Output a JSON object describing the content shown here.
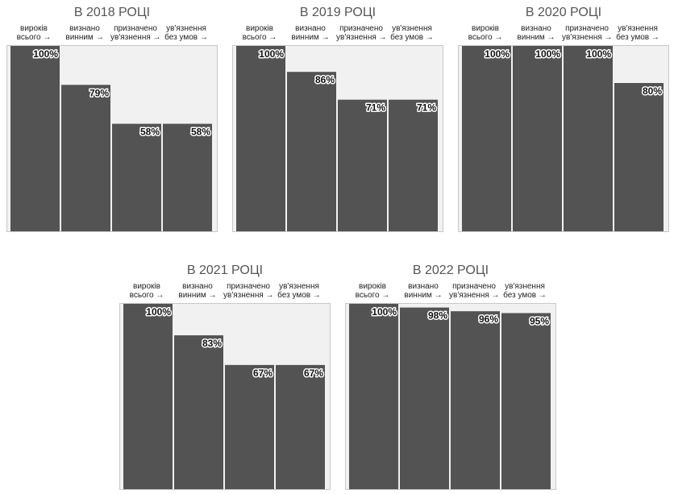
{
  "chart_data": [
    {
      "type": "bar",
      "title": "В 2018 РОЦІ",
      "categories": [
        "вироків\nвсього →",
        "визнано\nвинним →",
        "призначено\nув'язнення →",
        "ув'язнення\nбез умов →"
      ],
      "values": [
        100,
        79,
        58,
        58
      ],
      "value_labels": [
        "100%",
        "79%",
        "58%",
        "58%"
      ],
      "ylim": [
        0,
        100
      ]
    },
    {
      "type": "bar",
      "title": "В 2019 РОЦІ",
      "categories": [
        "вироків\nвсього →",
        "визнано\nвинним →",
        "призначено\nув'язнення →",
        "ув'язнення\nбез умов →"
      ],
      "values": [
        100,
        86,
        71,
        71
      ],
      "value_labels": [
        "100%",
        "86%",
        "71%",
        "71%"
      ],
      "ylim": [
        0,
        100
      ]
    },
    {
      "type": "bar",
      "title": "В 2020 РОЦІ",
      "categories": [
        "вироків\nвсього →",
        "визнано\nвинним →",
        "призначено\nув'язнення →",
        "ув'язнення\nбез умов →"
      ],
      "values": [
        100,
        100,
        100,
        80
      ],
      "value_labels": [
        "100%",
        "100%",
        "100%",
        "80%"
      ],
      "ylim": [
        0,
        100
      ]
    },
    {
      "type": "bar",
      "title": "В 2021 РОЦІ",
      "categories": [
        "вироків\nвсього →",
        "визнано\nвинним →",
        "призначено\nув'язнення →",
        "ув'язнення\nбез умов →"
      ],
      "values": [
        100,
        83,
        67,
        67
      ],
      "value_labels": [
        "100%",
        "83%",
        "67%",
        "67%"
      ],
      "ylim": [
        0,
        100
      ]
    },
    {
      "type": "bar",
      "title": "В 2022 РОЦІ",
      "categories": [
        "вироків\nвсього →",
        "визнано\nвинним →",
        "призначено\nув'язнення →",
        "ув'язнення\nбез умов →"
      ],
      "values": [
        100,
        98,
        96,
        95
      ],
      "value_labels": [
        "100%",
        "98%",
        "96%",
        "95%"
      ],
      "ylim": [
        0,
        100
      ]
    }
  ],
  "colors": {
    "bar": "#535353",
    "plot_background": "#f1f1f1",
    "title": "#555555"
  }
}
